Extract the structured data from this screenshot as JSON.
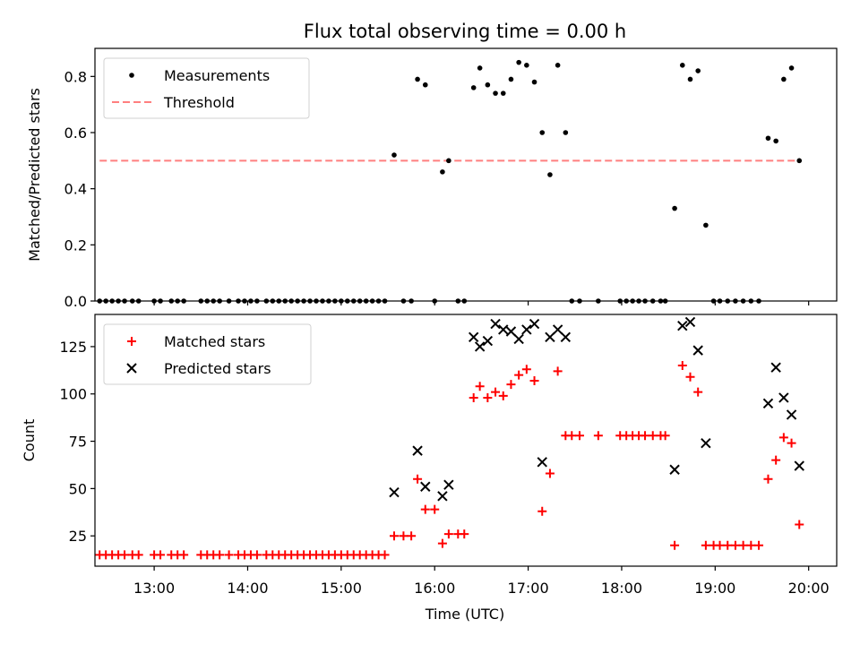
{
  "figure_title": "Flux total observing time = 0.00 h",
  "xlabel": "Time (UTC)",
  "xtick_labels": [
    "13:00",
    "14:00",
    "15:00",
    "16:00",
    "17:00",
    "18:00",
    "19:00",
    "20:00"
  ],
  "colors": {
    "measurements": "#000000",
    "threshold": "#ff7f7f",
    "matched": "#ff0000",
    "predicted": "#000000"
  },
  "chart_data": [
    {
      "type": "scatter",
      "ylabel": "Matched/Predicted stars",
      "ylim": [
        0,
        0.9
      ],
      "xlim": [
        "12:22",
        "20:18"
      ],
      "yticks": [
        0.0,
        0.2,
        0.4,
        0.6,
        0.8
      ],
      "ytick_labels": [
        "0.0",
        "0.2",
        "0.4",
        "0.6",
        "0.8"
      ],
      "legend": {
        "placement": "top-left",
        "entries": [
          "Measurements",
          "Threshold"
        ]
      },
      "threshold": {
        "name": "Threshold",
        "y": 0.5,
        "x_range": [
          "12:25",
          "19:55"
        ],
        "style": "dashed"
      },
      "series": [
        {
          "name": "Measurements",
          "marker": "dot",
          "points": [
            [
              "12:25",
              0
            ],
            [
              "12:29",
              0
            ],
            [
              "12:33",
              0
            ],
            [
              "12:37",
              0
            ],
            [
              "12:41",
              0
            ],
            [
              "12:46",
              0
            ],
            [
              "12:50",
              0
            ],
            [
              "13:00",
              0
            ],
            [
              "13:04",
              0
            ],
            [
              "13:11",
              0
            ],
            [
              "13:15",
              0
            ],
            [
              "13:19",
              0
            ],
            [
              "13:30",
              0
            ],
            [
              "13:34",
              0
            ],
            [
              "13:38",
              0
            ],
            [
              "13:42",
              0
            ],
            [
              "13:48",
              0
            ],
            [
              "13:54",
              0
            ],
            [
              "13:58",
              0
            ],
            [
              "14:02",
              0
            ],
            [
              "14:06",
              0
            ],
            [
              "14:12",
              0
            ],
            [
              "14:16",
              0
            ],
            [
              "14:20",
              0
            ],
            [
              "14:24",
              0
            ],
            [
              "14:28",
              0
            ],
            [
              "14:32",
              0
            ],
            [
              "14:36",
              0
            ],
            [
              "14:40",
              0
            ],
            [
              "14:44",
              0
            ],
            [
              "14:48",
              0
            ],
            [
              "14:52",
              0
            ],
            [
              "14:56",
              0
            ],
            [
              "15:00",
              0
            ],
            [
              "15:04",
              0
            ],
            [
              "15:08",
              0
            ],
            [
              "15:12",
              0
            ],
            [
              "15:16",
              0
            ],
            [
              "15:20",
              0
            ],
            [
              "15:24",
              0
            ],
            [
              "15:28",
              0
            ],
            [
              "15:34",
              0.52
            ],
            [
              "15:40",
              0
            ],
            [
              "15:45",
              0
            ],
            [
              "15:49",
              0.79
            ],
            [
              "15:54",
              0.77
            ],
            [
              "16:00",
              0
            ],
            [
              "16:05",
              0.46
            ],
            [
              "16:09",
              0.5
            ],
            [
              "16:15",
              0
            ],
            [
              "16:19",
              0
            ],
            [
              "16:25",
              0.76
            ],
            [
              "16:29",
              0.83
            ],
            [
              "16:34",
              0.77
            ],
            [
              "16:39",
              0.74
            ],
            [
              "16:44",
              0.74
            ],
            [
              "16:49",
              0.79
            ],
            [
              "16:54",
              0.85
            ],
            [
              "16:59",
              0.84
            ],
            [
              "17:04",
              0.78
            ],
            [
              "17:09",
              0.6
            ],
            [
              "17:14",
              0.45
            ],
            [
              "17:19",
              0.84
            ],
            [
              "17:24",
              0.6
            ],
            [
              "17:28",
              0
            ],
            [
              "17:33",
              0
            ],
            [
              "17:45",
              0
            ],
            [
              "17:59",
              0
            ],
            [
              "18:03",
              0
            ],
            [
              "18:07",
              0
            ],
            [
              "18:11",
              0
            ],
            [
              "18:15",
              0
            ],
            [
              "18:20",
              0
            ],
            [
              "18:25",
              0
            ],
            [
              "18:28",
              0
            ],
            [
              "18:34",
              0.33
            ],
            [
              "18:39",
              0.84
            ],
            [
              "18:44",
              0.79
            ],
            [
              "18:49",
              0.82
            ],
            [
              "18:54",
              0.27
            ],
            [
              "18:59",
              0
            ],
            [
              "19:03",
              0
            ],
            [
              "19:08",
              0
            ],
            [
              "19:13",
              0
            ],
            [
              "19:18",
              0
            ],
            [
              "19:23",
              0
            ],
            [
              "19:28",
              0
            ],
            [
              "19:34",
              0.58
            ],
            [
              "19:39",
              0.57
            ],
            [
              "19:44",
              0.79
            ],
            [
              "19:49",
              0.83
            ],
            [
              "19:54",
              0.5
            ]
          ]
        }
      ]
    },
    {
      "type": "scatter",
      "ylabel": "Count",
      "ylim": [
        9,
        142
      ],
      "xlim": [
        "12:22",
        "20:18"
      ],
      "yticks": [
        25,
        50,
        75,
        100,
        125
      ],
      "ytick_labels": [
        "25",
        "50",
        "75",
        "100",
        "125"
      ],
      "legend": {
        "placement": "top-left",
        "entries": [
          "Matched stars",
          "Predicted stars"
        ]
      },
      "series": [
        {
          "name": "Matched stars",
          "marker": "plus",
          "points": [
            [
              "12:25",
              15
            ],
            [
              "12:29",
              15
            ],
            [
              "12:33",
              15
            ],
            [
              "12:37",
              15
            ],
            [
              "12:41",
              15
            ],
            [
              "12:46",
              15
            ],
            [
              "12:50",
              15
            ],
            [
              "13:00",
              15
            ],
            [
              "13:04",
              15
            ],
            [
              "13:11",
              15
            ],
            [
              "13:15",
              15
            ],
            [
              "13:19",
              15
            ],
            [
              "13:30",
              15
            ],
            [
              "13:34",
              15
            ],
            [
              "13:38",
              15
            ],
            [
              "13:42",
              15
            ],
            [
              "13:48",
              15
            ],
            [
              "13:54",
              15
            ],
            [
              "13:58",
              15
            ],
            [
              "14:02",
              15
            ],
            [
              "14:06",
              15
            ],
            [
              "14:12",
              15
            ],
            [
              "14:16",
              15
            ],
            [
              "14:20",
              15
            ],
            [
              "14:24",
              15
            ],
            [
              "14:28",
              15
            ],
            [
              "14:32",
              15
            ],
            [
              "14:36",
              15
            ],
            [
              "14:40",
              15
            ],
            [
              "14:44",
              15
            ],
            [
              "14:48",
              15
            ],
            [
              "14:52",
              15
            ],
            [
              "14:56",
              15
            ],
            [
              "15:00",
              15
            ],
            [
              "15:04",
              15
            ],
            [
              "15:08",
              15
            ],
            [
              "15:12",
              15
            ],
            [
              "15:16",
              15
            ],
            [
              "15:20",
              15
            ],
            [
              "15:24",
              15
            ],
            [
              "15:28",
              15
            ],
            [
              "15:34",
              25
            ],
            [
              "15:40",
              25
            ],
            [
              "15:45",
              25
            ],
            [
              "15:49",
              55
            ],
            [
              "15:54",
              39
            ],
            [
              "16:00",
              39
            ],
            [
              "16:05",
              21
            ],
            [
              "16:09",
              26
            ],
            [
              "16:15",
              26
            ],
            [
              "16:19",
              26
            ],
            [
              "16:25",
              98
            ],
            [
              "16:29",
              104
            ],
            [
              "16:34",
              98
            ],
            [
              "16:39",
              101
            ],
            [
              "16:44",
              99
            ],
            [
              "16:49",
              105
            ],
            [
              "16:54",
              110
            ],
            [
              "16:59",
              113
            ],
            [
              "17:04",
              107
            ],
            [
              "17:09",
              38
            ],
            [
              "17:14",
              58
            ],
            [
              "17:19",
              112
            ],
            [
              "17:24",
              78
            ],
            [
              "17:28",
              78
            ],
            [
              "17:33",
              78
            ],
            [
              "17:45",
              78
            ],
            [
              "17:59",
              78
            ],
            [
              "18:03",
              78
            ],
            [
              "18:07",
              78
            ],
            [
              "18:11",
              78
            ],
            [
              "18:15",
              78
            ],
            [
              "18:20",
              78
            ],
            [
              "18:25",
              78
            ],
            [
              "18:28",
              78
            ],
            [
              "18:34",
              20
            ],
            [
              "18:39",
              115
            ],
            [
              "18:44",
              109
            ],
            [
              "18:49",
              101
            ],
            [
              "18:54",
              20
            ],
            [
              "18:59",
              20
            ],
            [
              "19:03",
              20
            ],
            [
              "19:08",
              20
            ],
            [
              "19:13",
              20
            ],
            [
              "19:18",
              20
            ],
            [
              "19:23",
              20
            ],
            [
              "19:28",
              20
            ],
            [
              "19:34",
              55
            ],
            [
              "19:39",
              65
            ],
            [
              "19:44",
              77
            ],
            [
              "19:49",
              74
            ],
            [
              "19:54",
              31
            ]
          ]
        },
        {
          "name": "Predicted stars",
          "marker": "x",
          "points": [
            [
              "15:34",
              48
            ],
            [
              "15:49",
              70
            ],
            [
              "15:54",
              51
            ],
            [
              "16:05",
              46
            ],
            [
              "16:09",
              52
            ],
            [
              "16:25",
              130
            ],
            [
              "16:29",
              125
            ],
            [
              "16:34",
              128
            ],
            [
              "16:39",
              137
            ],
            [
              "16:44",
              134
            ],
            [
              "16:49",
              133
            ],
            [
              "16:54",
              129
            ],
            [
              "16:59",
              134
            ],
            [
              "17:04",
              137
            ],
            [
              "17:09",
              64
            ],
            [
              "17:14",
              130
            ],
            [
              "17:19",
              134
            ],
            [
              "17:24",
              130
            ],
            [
              "18:34",
              60
            ],
            [
              "18:39",
              136
            ],
            [
              "18:44",
              138
            ],
            [
              "18:49",
              123
            ],
            [
              "18:54",
              74
            ],
            [
              "19:34",
              95
            ],
            [
              "19:39",
              114
            ],
            [
              "19:44",
              98
            ],
            [
              "19:49",
              89
            ],
            [
              "19:54",
              62
            ]
          ]
        }
      ]
    }
  ]
}
